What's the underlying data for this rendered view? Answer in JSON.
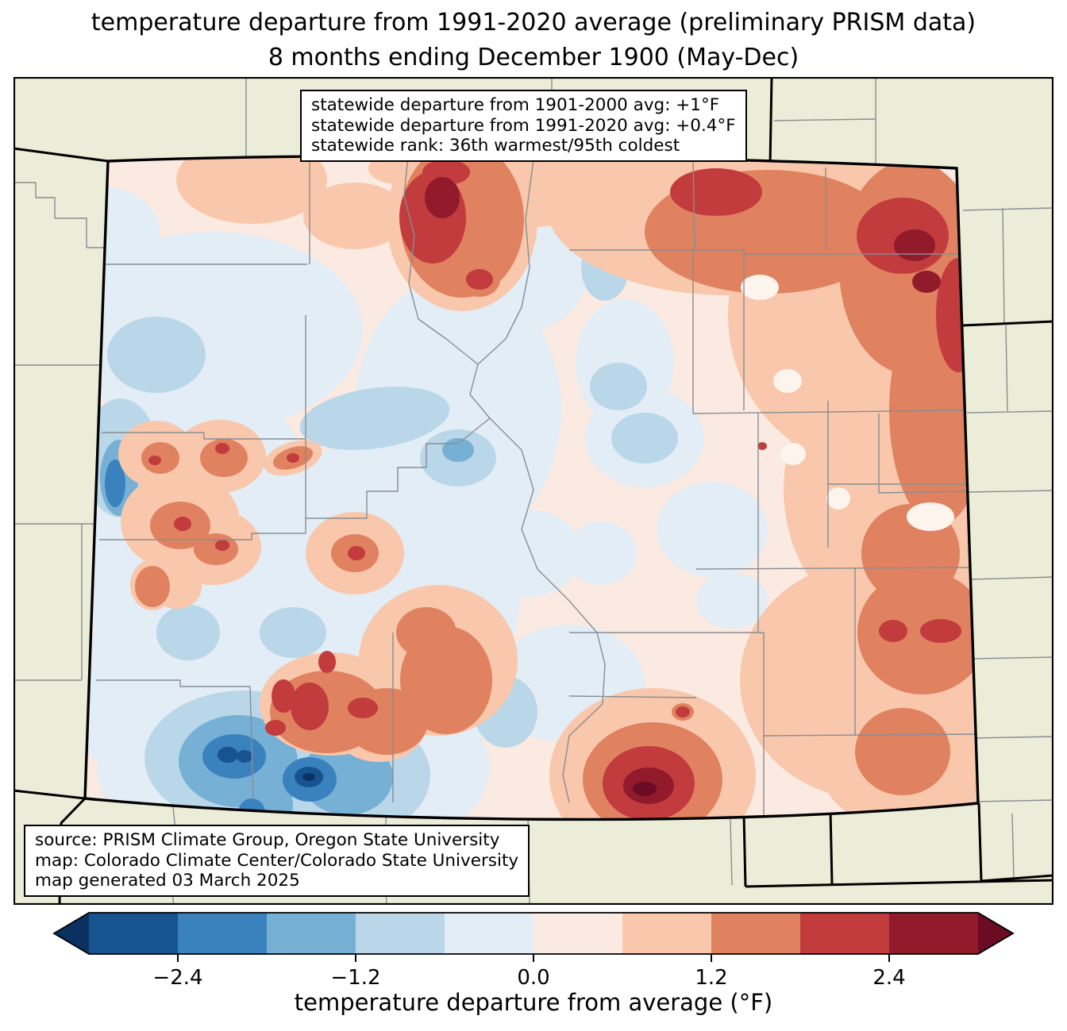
{
  "title": {
    "line1": "temperature departure from 1991-2020 average (preliminary PRISM data)",
    "line2": "8 months ending December 1900 (May-Dec)"
  },
  "stats_box": {
    "line1": "statewide departure from 1901-2000 avg: +1°F",
    "line2": "statewide departure from 1991-2020 avg: +0.4°F",
    "line3": "statewide rank: 36th warmest/95th coldest"
  },
  "source_box": {
    "line1": "source: PRISM Climate Group, Oregon State University",
    "line2": "map: Colorado Climate Center/Colorado State University",
    "line3": "map generated 03 March 2025"
  },
  "colorbar": {
    "label": "temperature departure from average (°F)",
    "ticks": [
      "−2.4",
      "−1.2",
      "0.0",
      "1.2",
      "2.4"
    ],
    "tick_values": [
      -2.4,
      -1.2,
      0.0,
      1.2,
      2.4
    ],
    "vmin": -3.0,
    "vmax": 3.0,
    "boundaries": [
      -3.0,
      -2.4,
      -1.8,
      -1.2,
      -0.6,
      0.0,
      0.6,
      1.2,
      1.8,
      2.4,
      3.0
    ],
    "segment_colors": [
      "#17538f",
      "#3a82be",
      "#76b0d4",
      "#b9d7e9",
      "#e3edf5",
      "#fbeae1",
      "#f9c7ab",
      "#e0815f",
      "#c23b3d",
      "#911b2b"
    ],
    "under_color": "#0a3161",
    "over_color": "#6b0b24"
  },
  "map": {
    "region": "Colorado",
    "background_color": "#ecedd9",
    "county_line_color": "#878d93",
    "state_line_color": "#000000"
  },
  "map_palette": {
    "under": "#0a3161",
    "b5": "#17538f",
    "b4": "#3a82be",
    "b3": "#76b0d4",
    "b2": "#b9d7e9",
    "b1": "#e3edf5",
    "r1": "#fbeae1",
    "r2": "#f9c7ab",
    "r3": "#e0815f",
    "r4": "#c23b3d",
    "r5": "#911b2b",
    "over": "#6b0b24",
    "ws": "#fdf4ee"
  },
  "chart_data": {
    "type": "heatmap",
    "title": "temperature departure from 1991-2020 average (preliminary PRISM data) — 8 months ending December 1900 (May-Dec)",
    "region": "Colorado",
    "colorbar_label": "temperature departure from average (°F)",
    "colorbar_boundaries": [
      -3.0,
      -2.4,
      -1.8,
      -1.2,
      -0.6,
      0.0,
      0.6,
      1.2,
      1.8,
      2.4,
      3.0
    ],
    "colorbar_ticks": [
      -2.4,
      -1.2,
      0.0,
      1.2,
      2.4
    ],
    "statewide": {
      "departure_from_1901_2000_avg_F": 1.0,
      "departure_from_1991_2020_avg_F": 0.4,
      "rank_warmest": 36,
      "rank_coldest": 95
    }
  }
}
